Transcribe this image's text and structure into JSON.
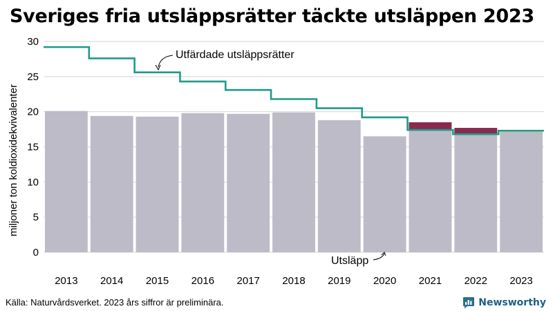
{
  "chart_data": {
    "type": "bar",
    "title": "Sveriges fria utsläppsrätter täckte utsläppen 2023",
    "ylabel": "miljoner ton koldioxidekvivalenter",
    "xlabel": "",
    "ylim": [
      0,
      30
    ],
    "yticks": [
      0,
      5,
      10,
      15,
      20,
      25,
      30
    ],
    "categories": [
      "2013",
      "2014",
      "2015",
      "2016",
      "2017",
      "2018",
      "2019",
      "2020",
      "2021",
      "2022",
      "2023"
    ],
    "grid": true,
    "series": [
      {
        "name": "Utsläpp",
        "type": "bar",
        "color": "#bebbc8",
        "values": [
          20.1,
          19.4,
          19.3,
          19.8,
          19.7,
          19.9,
          18.8,
          16.5,
          18.5,
          17.7,
          17.2
        ]
      },
      {
        "name": "Utfärdade utsläppsrätter",
        "type": "step",
        "color": "#1f9a8a",
        "values": [
          29.2,
          27.6,
          25.6,
          24.3,
          23.1,
          21.8,
          20.5,
          19.2,
          17.4,
          16.8,
          17.3
        ]
      }
    ],
    "excess_color": "#8a2a4f"
  },
  "source": "Källa: Naturvårdsverket. 2023 års siffror är preliminära.",
  "brand": "Newsworthy"
}
